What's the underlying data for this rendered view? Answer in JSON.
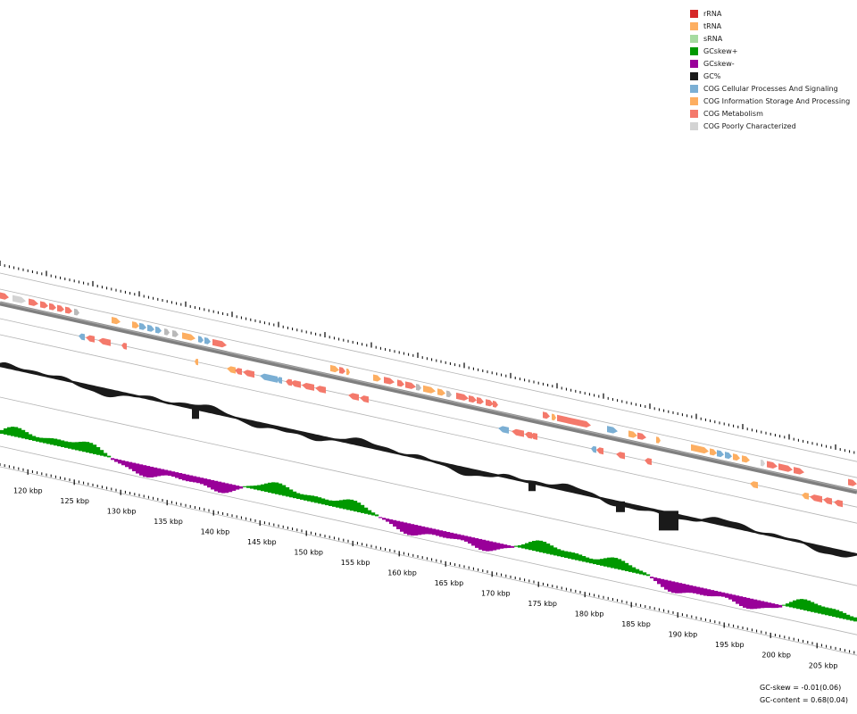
{
  "legend": {
    "items": [
      {
        "label": "rRNA",
        "color": "#d62728"
      },
      {
        "label": "tRNA",
        "color": "#fdae61"
      },
      {
        "label": "sRNA",
        "color": "#a6dba0"
      },
      {
        "label": "GCskew+",
        "color": "#009900"
      },
      {
        "label": "GCskew-",
        "color": "#990099"
      },
      {
        "label": "GC%",
        "color": "#1a1a1a"
      },
      {
        "label": "COG Cellular Processes And Signaling",
        "color": "#7bafd4"
      },
      {
        "label": "COG Information Storage And Processing",
        "color": "#fdae61"
      },
      {
        "label": "COG Metabolism",
        "color": "#f4796b"
      },
      {
        "label": "COG Poorly Characterized",
        "color": "#d3d3d3"
      }
    ]
  },
  "axis": {
    "unit": "kbp",
    "labels": [
      "120 kbp",
      "125 kbp",
      "130 kbp",
      "135 kbp",
      "140 kbp",
      "145 kbp",
      "150 kbp",
      "155 kbp",
      "160 kbp",
      "165 kbp",
      "170 kbp",
      "175 kbp",
      "180 kbp",
      "185 kbp",
      "190 kbp",
      "195 kbp",
      "200 kbp",
      "205 kbp"
    ]
  },
  "stats": {
    "gc_skew": "GC-skew = -0.01(0.06)",
    "gc_content": "GC-content = 0.68(0.04)"
  },
  "colors": {
    "backbone": "#7f7f7f",
    "track_line": "#b3b3b3",
    "gc": "#1a1a1a",
    "skew_pos": "#009900",
    "skew_neg": "#990099"
  }
}
